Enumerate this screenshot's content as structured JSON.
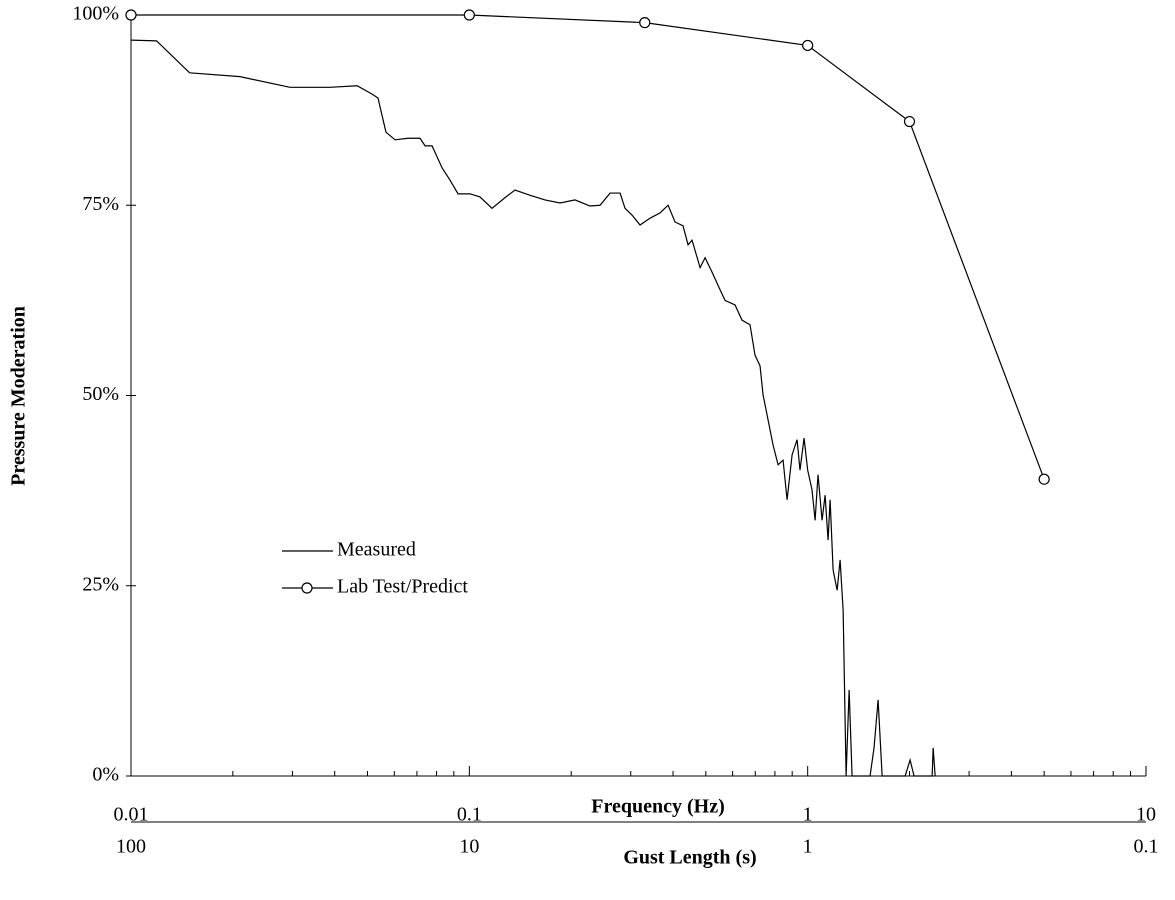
{
  "chart_data": {
    "type": "line",
    "x_label": "Frequency (Hz)",
    "y_label": "Pressure Moderation",
    "x2_label": "Gust Length (s)",
    "xlog": true,
    "xlim": [
      0.01,
      10
    ],
    "xticks": [
      0.01,
      0.1,
      1,
      10
    ],
    "xminor_ticks": [
      0.02,
      0.03,
      0.04,
      0.05,
      0.06,
      0.07,
      0.08,
      0.09,
      0.2,
      0.3,
      0.4,
      0.5,
      0.6,
      0.7,
      0.8,
      0.9,
      2,
      3,
      4,
      5,
      6,
      7,
      8,
      9
    ],
    "x2lim": [
      100,
      0.1
    ],
    "x2ticks": [
      100,
      10,
      1,
      0.1
    ],
    "ylim": [
      0,
      100
    ],
    "yticks": [
      {
        "value": 0,
        "label": "0%"
      },
      {
        "value": 25,
        "label": "25%"
      },
      {
        "value": 50,
        "label": "50%"
      },
      {
        "value": 75,
        "label": "75%"
      },
      {
        "value": 100,
        "label": "100%"
      }
    ],
    "legend": "left",
    "series": [
      {
        "name": "Measured",
        "color": "#000000",
        "marker": false,
        "x": [
          0.01,
          0.0119,
          0.0149,
          0.021,
          0.0295,
          0.0387,
          0.0466,
          0.0516,
          0.0537,
          0.0567,
          0.0603,
          0.0659,
          0.0715,
          0.074,
          0.0776,
          0.0831,
          0.0877,
          0.0926,
          0.1005,
          0.1075,
          0.1167,
          0.1275,
          0.1365,
          0.1512,
          0.1674,
          0.1854,
          0.2053,
          0.2274,
          0.2434,
          0.2606,
          0.279,
          0.2885,
          0.3027,
          0.3196,
          0.3422,
          0.3662,
          0.3868,
          0.4055,
          0.4282,
          0.4431,
          0.4553,
          0.4809,
          0.4975,
          0.5218,
          0.5508,
          0.5699,
          0.6102,
          0.6397,
          0.6755,
          0.6989,
          0.7231,
          0.7381,
          0.7638,
          0.7902,
          0.8176,
          0.8459,
          0.8693,
          0.8994,
          0.9305,
          0.949,
          0.9759,
          1.0,
          1.03,
          1.052,
          1.073,
          1.103,
          1.126,
          1.149,
          1.165,
          1.189,
          1.222,
          1.247,
          1.273,
          1.299,
          1.326,
          1.353,
          1.529,
          1.571,
          1.615,
          1.66,
          1.941,
          2.008,
          2.063,
          2.333,
          2.349,
          2.381
        ],
        "values": [
          96.7,
          96.6,
          92.4,
          91.9,
          90.5,
          90.5,
          90.7,
          89.6,
          89.1,
          84.6,
          83.6,
          83.8,
          83.8,
          82.8,
          82.8,
          79.9,
          78.3,
          76.5,
          76.5,
          76.1,
          74.6,
          76.0,
          77.0,
          76.3,
          75.7,
          75.3,
          75.7,
          74.9,
          75.0,
          76.6,
          76.6,
          74.6,
          73.7,
          72.4,
          73.3,
          74.0,
          75.0,
          72.8,
          72.3,
          69.8,
          70.4,
          66.8,
          68.1,
          66.2,
          63.9,
          62.5,
          61.9,
          59.9,
          59.3,
          55.3,
          53.9,
          50.1,
          46.8,
          43.5,
          40.9,
          41.5,
          36.3,
          42.2,
          44.2,
          40.2,
          44.4,
          40.2,
          37.6,
          33.6,
          39.6,
          33.6,
          36.9,
          31.0,
          36.3,
          27.1,
          24.4,
          28.4,
          21.8,
          0,
          11.3,
          0,
          0,
          3.7,
          10.0,
          0,
          0,
          2.1,
          0,
          0,
          3.7,
          0
        ]
      },
      {
        "name": "Lab Test/Predict",
        "color": "#000000",
        "marker": true,
        "x": [
          0.01,
          0.1,
          0.33,
          1,
          2,
          5
        ],
        "values": [
          100,
          100,
          99,
          96,
          86,
          39
        ]
      }
    ]
  }
}
